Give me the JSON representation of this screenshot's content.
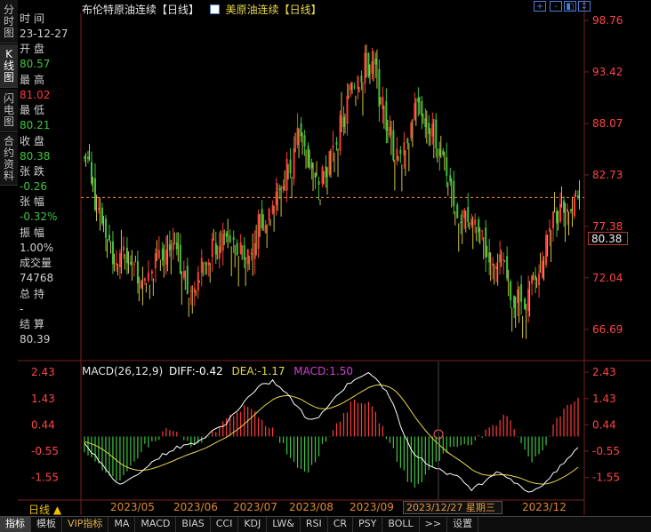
{
  "sidebar_tabs": [
    {
      "label": "分时图",
      "active": false
    },
    {
      "label": "K线图",
      "active": true
    },
    {
      "label": "闪电图",
      "active": false
    },
    {
      "label": "合约资料",
      "active": false
    }
  ],
  "info_panel": [
    {
      "label": "时 间",
      "value": "23-12-27",
      "color": "#cfcfcf"
    },
    {
      "label": "开 盘",
      "value": "80.57",
      "color": "#3fc43f"
    },
    {
      "label": "最 高",
      "value": "81.02",
      "color": "#ff3b3b"
    },
    {
      "label": "最 低",
      "value": "80.21",
      "color": "#3fc43f"
    },
    {
      "label": "收 盘",
      "value": "80.38",
      "color": "#3fc43f"
    },
    {
      "label": "张 跌",
      "value": "-0.26",
      "color": "#3fc43f"
    },
    {
      "label": "张 幅",
      "value": "-0.32%",
      "color": "#3fc43f"
    },
    {
      "label": "振 幅",
      "value": "1.00%",
      "color": "#cfcfcf"
    },
    {
      "label": "成交量",
      "value": "74768",
      "color": "#cfcfcf"
    },
    {
      "label": "总 持",
      "value": "-",
      "color": "#cfcfcf"
    },
    {
      "label": "结 算",
      "value": "80.39",
      "color": "#cfcfcf"
    }
  ],
  "header": {
    "title": "布伦特原油连续【日线】",
    "overlay_name": "美原油连续【日线】"
  },
  "controls": [
    "+",
    "-",
    "◧",
    "↕",
    "⇤"
  ],
  "price_axis": [
    "98.76",
    "93.42",
    "88.07",
    "82.73",
    "77.38",
    "72.04",
    "66.69"
  ],
  "current_price": "80.38",
  "macd_header": {
    "name": "MACD(26,12,9)",
    "diff": "DIFF:-0.42",
    "dea": "DEA:-1.17",
    "macd": "MACD:1.50"
  },
  "macd_axis": [
    "2.43",
    "1.43",
    "0.44",
    "-0.55",
    "-1.55"
  ],
  "date_axis": [
    "2023/05",
    "2023/06",
    "2023/07",
    "2023/08",
    "2023/09",
    "2023/12"
  ],
  "cursor_date": "2023/12/27 星期三",
  "period_label": "日线 ▲",
  "bottom_tabs": [
    {
      "label": "指标",
      "active": true,
      "vip": false
    },
    {
      "label": "模板",
      "active": false,
      "vip": false
    },
    {
      "label": "VIP指标",
      "active": false,
      "vip": true
    },
    {
      "label": "MA",
      "active": false,
      "vip": false
    },
    {
      "label": "MACD",
      "active": false,
      "vip": false
    },
    {
      "label": "BIAS",
      "active": false,
      "vip": false
    },
    {
      "label": "CCI",
      "active": false,
      "vip": false
    },
    {
      "label": "KDJ",
      "active": false,
      "vip": false
    },
    {
      "label": "LW&",
      "active": false,
      "vip": false
    },
    {
      "label": "RSI",
      "active": false,
      "vip": false
    },
    {
      "label": "CR",
      "active": false,
      "vip": false
    },
    {
      "label": "PSY",
      "active": false,
      "vip": false
    },
    {
      "label": "BOLL",
      "active": false,
      "vip": false
    },
    {
      "label": ">>",
      "active": false,
      "vip": false
    },
    {
      "label": "设置",
      "active": false,
      "vip": false
    }
  ],
  "colors": {
    "up": "#ff3b3b",
    "down": "#3fc43f",
    "overlay": "#e8d84a",
    "axis_text": "#ff4444",
    "diff_line": "#ffffff",
    "dea_line": "#e8d84a",
    "macd_label": "#d040d0"
  },
  "chart_data": [
    {
      "type": "candlestick",
      "title": "布伦特原油连续【日线】",
      "series": [
        {
          "name": "布伦特原油连续",
          "color_up": "#ff3b3b",
          "color_down": "#3fc43f"
        },
        {
          "name": "美原油连续",
          "color": "#e8d84a"
        }
      ],
      "x": [
        "2023/05",
        "2023/06",
        "2023/07",
        "2023/08",
        "2023/09",
        "2023/12"
      ],
      "ylim": [
        64.0,
        99.5
      ],
      "y_ticks": [
        98.76,
        93.42,
        88.07,
        82.73,
        77.38,
        72.04,
        66.69
      ],
      "reference_line": 80.38,
      "trend_closes": [
        84.5,
        80.5,
        77.5,
        73.5,
        74.5,
        72.5,
        73.5,
        75.5,
        75,
        72.5,
        71.5,
        73.5,
        75,
        76.5,
        75,
        74.5,
        77,
        78.5,
        81.5,
        84,
        86.5,
        84.5,
        83,
        85,
        88,
        92,
        94,
        93.5,
        89,
        85,
        87,
        90,
        88.5,
        85,
        82,
        78,
        77,
        76,
        74.5,
        72.5,
        70.5,
        69.5,
        71.5,
        75,
        78.5,
        79.5,
        80.4
      ]
    },
    {
      "type": "bar",
      "title": "MACD(26,12,9)",
      "series": [
        {
          "name": "DIFF",
          "color": "#ffffff",
          "last": -0.42
        },
        {
          "name": "DEA",
          "color": "#e8d84a",
          "last": -1.17
        },
        {
          "name": "MACD",
          "color": "#d040d0",
          "last": 1.5
        }
      ],
      "ylim": [
        -2.3,
        2.6
      ],
      "y_ticks": [
        2.43,
        1.43,
        0.44,
        -0.55,
        -1.55
      ],
      "macd_trend": [
        -0.5,
        -0.9,
        -1.5,
        -1.8,
        -1.1,
        -0.4,
        -0.2,
        0.3,
        0.1,
        -0.4,
        -0.3,
        0.2,
        0.6,
        1.0,
        1.1,
        0.6,
        0.3,
        -0.4,
        -1.1,
        -1.3,
        -0.6,
        0.2,
        0.8,
        1.4,
        1.3,
        0.7,
        -0.3,
        -1.2,
        -2.0,
        -1.5,
        -0.9,
        -0.5,
        -0.3,
        -0.2,
        0.1,
        0.4,
        0.9,
        -0.1,
        -0.9,
        -0.6,
        0.5,
        1.2,
        1.5
      ],
      "diff_trend": [
        -0.2,
        -0.8,
        -1.4,
        -1.8,
        -1.6,
        -1.2,
        -0.9,
        -0.6,
        -0.4,
        -0.3,
        -0.1,
        0.2,
        0.5,
        1.0,
        1.5,
        1.9,
        2.1,
        1.7,
        1.2,
        0.6,
        0.8,
        1.3,
        1.8,
        2.2,
        2.4,
        2.1,
        1.5,
        0.3,
        -0.6,
        -1.0,
        -1.2,
        -1.4,
        -1.6,
        -2.0,
        -1.7,
        -1.3,
        -1.5,
        -1.9,
        -2.1,
        -1.8,
        -1.4,
        -0.9,
        -0.42
      ]
    }
  ]
}
